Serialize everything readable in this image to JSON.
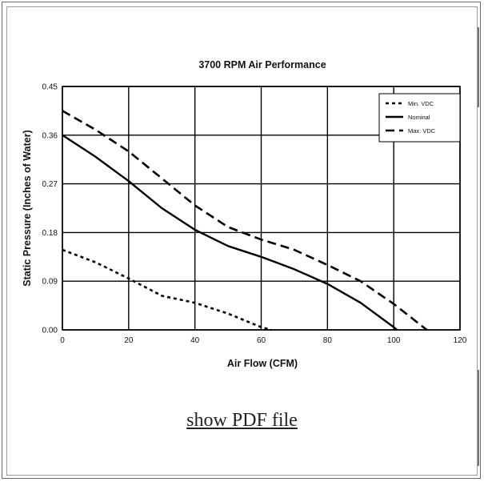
{
  "chart_data": {
    "type": "line",
    "title": "3700 RPM Air Performance",
    "xlabel": "Air Flow (CFM)",
    "ylabel": "Static Pressure (Inches of Water)",
    "xlim": [
      0,
      120
    ],
    "ylim": [
      0,
      0.45
    ],
    "xticks": [
      "0",
      "20",
      "40",
      "60",
      "80",
      "100",
      "120"
    ],
    "yticks": [
      "0.00",
      "0.09",
      "0.18",
      "0.27",
      "0.36",
      "0.45"
    ],
    "grid": true,
    "legend_position": "top-right",
    "series": [
      {
        "name": "Min. VDC",
        "style": "short-dash",
        "x": [
          0,
          10,
          20,
          30,
          40,
          50,
          60,
          63
        ],
        "y": [
          0.148,
          0.125,
          0.095,
          0.063,
          0.05,
          0.03,
          0.005,
          0.0
        ]
      },
      {
        "name": "Nominal",
        "style": "solid",
        "x": [
          0,
          10,
          20,
          30,
          40,
          50,
          60,
          70,
          80,
          90,
          100,
          101
        ],
        "y": [
          0.36,
          0.32,
          0.275,
          0.225,
          0.185,
          0.155,
          0.135,
          0.112,
          0.085,
          0.05,
          0.005,
          0.0
        ]
      },
      {
        "name": "Max. VDC",
        "style": "long-dash",
        "x": [
          0,
          10,
          20,
          30,
          40,
          50,
          60,
          70,
          80,
          90,
          100,
          110
        ],
        "y": [
          0.405,
          0.37,
          0.33,
          0.28,
          0.23,
          0.19,
          0.167,
          0.148,
          0.12,
          0.09,
          0.048,
          0.0
        ]
      }
    ]
  },
  "link": {
    "label": "show PDF file"
  }
}
